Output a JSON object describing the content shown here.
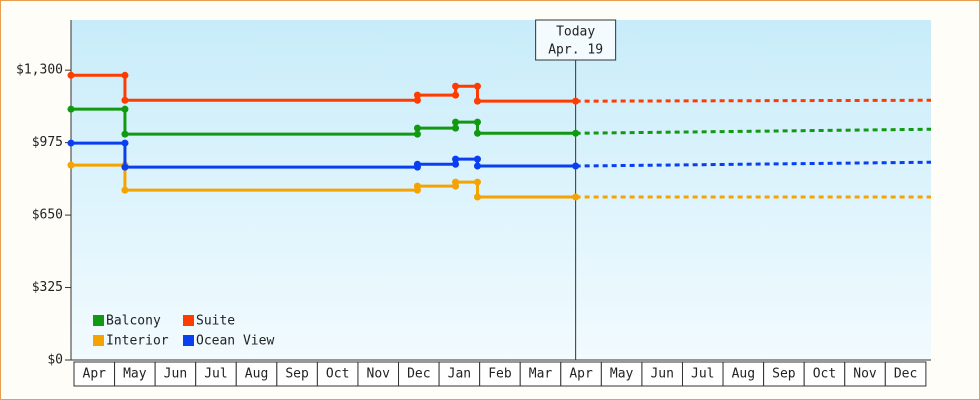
{
  "chart_data": {
    "type": "line",
    "categories": [
      "Apr",
      "May",
      "Jun",
      "Jul",
      "Aug",
      "Sep",
      "Oct",
      "Nov",
      "Dec",
      "Jan",
      "Feb",
      "Mar",
      "Apr",
      "May",
      "Jun",
      "Jul",
      "Aug",
      "Sep",
      "Oct",
      "Nov",
      "Dec"
    ],
    "xlim": [
      0,
      21.2
    ],
    "ylim": [
      0,
      1525
    ],
    "yticks": [
      {
        "value": 0,
        "label": "$0"
      },
      {
        "value": 325,
        "label": "$325"
      },
      {
        "value": 650,
        "label": "$650"
      },
      {
        "value": 975,
        "label": "$975"
      },
      {
        "value": 1300,
        "label": "$1,300"
      }
    ],
    "today": {
      "label": "Today",
      "date": "Apr. 19",
      "x": 12.44
    },
    "legend": "lower left",
    "series": [
      {
        "name": "Balcony",
        "color": "#119911",
        "x": [
          0,
          1.33,
          1.33,
          8.54,
          8.54,
          9.48,
          9.48,
          10.02,
          10.02,
          12.44
        ],
        "values": [
          1125,
          1125,
          1013,
          1013,
          1040,
          1040,
          1067,
          1067,
          1017,
          1017
        ],
        "forecast": {
          "x": [
            12.44,
            21.2
          ],
          "values": [
            1017,
            1035
          ]
        }
      },
      {
        "name": "Suite",
        "color": "#ff3c00",
        "x": [
          0,
          1.33,
          1.33,
          8.54,
          8.54,
          9.48,
          9.48,
          10.02,
          10.02,
          12.44
        ],
        "values": [
          1277,
          1277,
          1165,
          1165,
          1188,
          1188,
          1228,
          1228,
          1161,
          1161
        ],
        "forecast": {
          "x": [
            12.44,
            21.2
          ],
          "values": [
            1161,
            1165
          ]
        }
      },
      {
        "name": "Interior",
        "color": "#f5a300",
        "x": [
          0,
          1.33,
          1.33,
          8.54,
          8.54,
          9.48,
          9.48,
          10.02,
          10.02,
          12.44
        ],
        "values": [
          874,
          874,
          762,
          762,
          780,
          780,
          798,
          798,
          731,
          731
        ],
        "forecast": {
          "x": [
            12.44,
            21.2
          ],
          "values": [
            731,
            731
          ]
        }
      },
      {
        "name": "Ocean View",
        "color": "#0a3ff0",
        "x": [
          0,
          1.33,
          1.33,
          8.54,
          8.54,
          9.48,
          9.48,
          10.02,
          10.02,
          12.44
        ],
        "values": [
          973,
          973,
          865,
          865,
          878,
          878,
          901,
          901,
          870,
          870
        ],
        "forecast": {
          "x": [
            12.44,
            21.2
          ],
          "values": [
            870,
            887
          ]
        }
      }
    ]
  }
}
